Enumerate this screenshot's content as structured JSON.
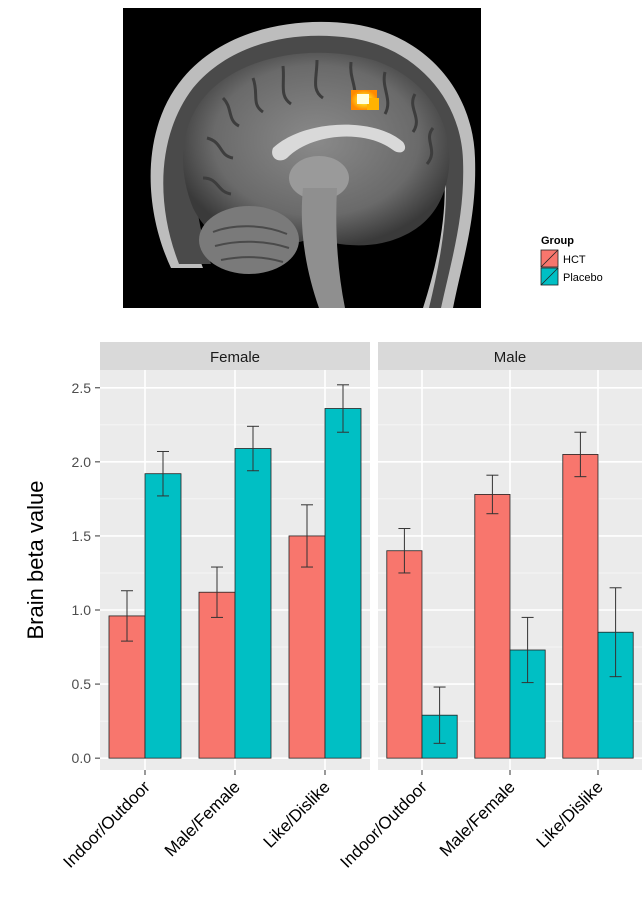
{
  "chart_data": {
    "type": "bar",
    "ylabel": "Brain beta value",
    "ylim": [
      -0.08,
      2.62
    ],
    "yticks": [
      "0.0",
      "0.5",
      "1.0",
      "1.5",
      "2.0",
      "2.5"
    ],
    "categories": [
      "Indoor/Outdoor",
      "Male/Female",
      "Like/Dislike"
    ],
    "legend": {
      "title": "Group",
      "placement": "right"
    },
    "group_colors": {
      "HCT": "#f8766d",
      "Placebo": "#00bfc4"
    },
    "panels": [
      {
        "label": "Female",
        "series": [
          {
            "name": "HCT",
            "values": [
              0.96,
              1.12,
              1.5
            ],
            "err": [
              0.17,
              0.17,
              0.21
            ]
          },
          {
            "name": "Placebo",
            "values": [
              1.92,
              2.09,
              2.36
            ],
            "err": [
              0.15,
              0.15,
              0.16
            ]
          }
        ]
      },
      {
        "label": "Male",
        "series": [
          {
            "name": "HCT",
            "values": [
              1.4,
              1.78,
              2.05
            ],
            "err": [
              0.15,
              0.13,
              0.15
            ]
          },
          {
            "name": "Placebo",
            "values": [
              0.29,
              0.73,
              0.85
            ],
            "err": [
              0.19,
              0.22,
              0.3
            ]
          }
        ]
      }
    ]
  }
}
